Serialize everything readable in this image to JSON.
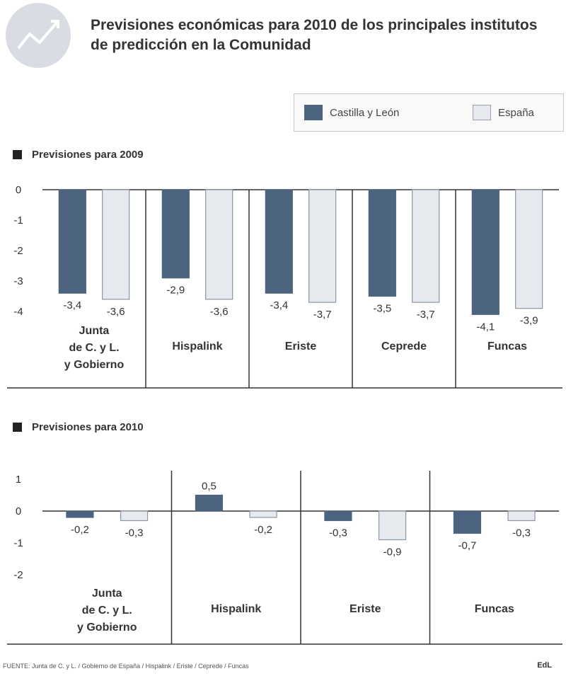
{
  "title": "Previsiones económicas para 2010 de los principales institutos de predicción en la Comunidad",
  "legend": {
    "castilla": "Castilla y León",
    "espana": "España"
  },
  "colors": {
    "castilla": "#4d6480",
    "espana": "#e6e9ee",
    "espana_stroke": "#8d96a3",
    "axis": "#333333"
  },
  "footer": "FUENTE: Junta de C. y L. / Gobierno de España / Hispalink / Eriste / Ceprede / Funcas",
  "footer_mark": "EdL",
  "chart_data": [
    {
      "type": "bar",
      "title": "Previsiones para 2009",
      "categories": [
        "Junta de C. y L. y Gobierno",
        "Hispalink",
        "Eriste",
        "Ceprede",
        "Funcas"
      ],
      "category_labels": [
        [
          "Junta",
          "de C. y L.",
          "y Gobierno"
        ],
        [
          "Hispalink"
        ],
        [
          "Eriste"
        ],
        [
          "Ceprede"
        ],
        [
          "Funcas"
        ]
      ],
      "series": [
        {
          "name": "Castilla y León",
          "values": [
            -3.4,
            -2.9,
            -3.4,
            -3.5,
            -4.1
          ],
          "labels": [
            "-3,4",
            "-2,9",
            "-3,4",
            "-3,5",
            "-4,1"
          ]
        },
        {
          "name": "España",
          "values": [
            -3.6,
            -3.6,
            -3.7,
            -3.7,
            -3.9
          ],
          "labels": [
            "-3,6",
            "-3,6",
            "-3,7",
            "-3,7",
            "-3,9"
          ]
        }
      ],
      "yticks": [
        "0",
        "-1",
        "-2",
        "-3",
        "-4"
      ],
      "ylim": [
        -4,
        0
      ]
    },
    {
      "type": "bar",
      "title": "Previsiones para 2010",
      "categories": [
        "Junta de C. y L. y Gobierno",
        "Hispalink",
        "Eriste",
        "Funcas"
      ],
      "category_labels": [
        [
          "Junta",
          "de C. y L.",
          "y Gobierno"
        ],
        [
          "Hispalink"
        ],
        [
          "Eriste"
        ],
        [
          "Funcas"
        ]
      ],
      "series": [
        {
          "name": "Castilla y León",
          "values": [
            -0.2,
            0.5,
            -0.3,
            -0.7
          ],
          "labels": [
            "-0,2",
            "0,5",
            "-0,3",
            "-0,7"
          ]
        },
        {
          "name": "España",
          "values": [
            -0.3,
            -0.2,
            -0.9,
            -0.3
          ],
          "labels": [
            "-0,3",
            "-0,2",
            "-0,9",
            "-0,3"
          ]
        }
      ],
      "yticks": [
        "1",
        "0",
        "-1",
        "-2"
      ],
      "ylim": [
        -2,
        1
      ]
    }
  ]
}
